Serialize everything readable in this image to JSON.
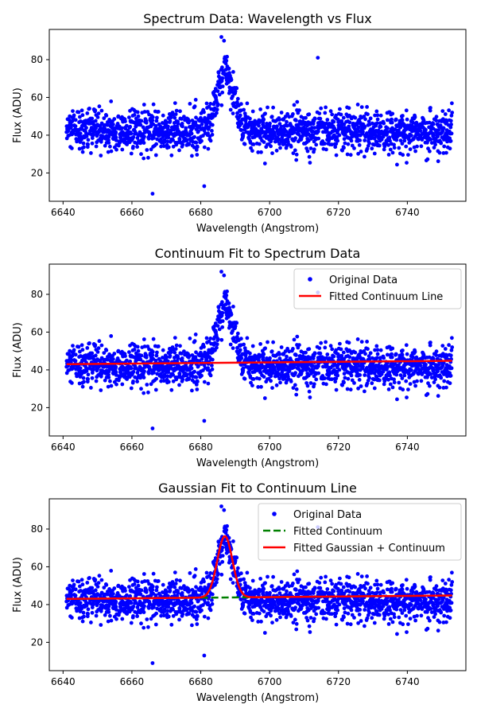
{
  "chart_data": [
    {
      "type": "scatter",
      "title": "Spectrum Data: Wavelength vs Flux",
      "xlabel": "Wavelength (Angstrom)",
      "ylabel": "Flux (ADU)",
      "xlim": [
        6636,
        6757
      ],
      "ylim": [
        5,
        96
      ],
      "xticks": [
        6640,
        6660,
        6680,
        6700,
        6720,
        6740
      ],
      "yticks": [
        20,
        40,
        60,
        80
      ],
      "legend_position": "",
      "series": [
        {
          "kind": "points",
          "color": "#0000ff",
          "x_range": [
            6641,
            6753
          ],
          "baseline": 42,
          "noise_sd": 5.5,
          "line_center": 6687,
          "line_amplitude": 32,
          "line_sigma": 2.4,
          "count": 1800,
          "outliers": [
            [
              6686,
              92
            ],
            [
              6714,
              81
            ],
            [
              6666,
              9
            ],
            [
              6681,
              13
            ]
          ]
        }
      ]
    },
    {
      "type": "scatter",
      "title": "Continuum Fit to Spectrum Data",
      "xlabel": "Wavelength (Angstrom)",
      "ylabel": "Flux (ADU)",
      "xlim": [
        6636,
        6757
      ],
      "ylim": [
        5,
        96
      ],
      "xticks": [
        6640,
        6660,
        6680,
        6700,
        6720,
        6740
      ],
      "yticks": [
        20,
        40,
        60,
        80
      ],
      "legend_position": "top-right",
      "series": [
        {
          "name": "Original Data",
          "kind": "points",
          "color": "#0000ff",
          "x_range": [
            6641,
            6753
          ],
          "baseline": 42,
          "noise_sd": 5.5,
          "line_center": 6687,
          "line_amplitude": 32,
          "line_sigma": 2.4,
          "count": 1800,
          "outliers": [
            [
              6686,
              92
            ],
            [
              6714,
              81
            ],
            [
              6666,
              9
            ],
            [
              6681,
              13
            ]
          ]
        },
        {
          "name": "Fitted Continuum Line",
          "kind": "line",
          "color": "#ff0000",
          "dash": false,
          "x": [
            6641,
            6753
          ],
          "y": [
            43.0,
            44.8
          ]
        }
      ]
    },
    {
      "type": "scatter",
      "title": "Gaussian Fit to Continuum Line",
      "xlabel": "Wavelength (Angstrom)",
      "ylabel": "Flux (ADU)",
      "xlim": [
        6636,
        6757
      ],
      "ylim": [
        5,
        96
      ],
      "xticks": [
        6640,
        6660,
        6680,
        6700,
        6720,
        6740
      ],
      "yticks": [
        20,
        40,
        60,
        80
      ],
      "legend_position": "top-right",
      "series": [
        {
          "name": "Original Data",
          "kind": "points",
          "color": "#0000ff",
          "x_range": [
            6641,
            6753
          ],
          "baseline": 42,
          "noise_sd": 5.5,
          "line_center": 6687,
          "line_amplitude": 32,
          "line_sigma": 2.4,
          "count": 1800,
          "outliers": [
            [
              6686,
              92
            ],
            [
              6714,
              81
            ],
            [
              6666,
              9
            ],
            [
              6681,
              13
            ]
          ]
        },
        {
          "name": "Fitted Continuum",
          "kind": "line",
          "color": "#008000",
          "dash": true,
          "x": [
            6641,
            6753
          ],
          "y": [
            43.0,
            44.8
          ]
        },
        {
          "name": "Fitted Gaussian + Continuum",
          "kind": "gaussian",
          "color": "#ff0000",
          "dash": false,
          "x_range": [
            6641,
            6753
          ],
          "continuum": [
            43.0,
            44.8
          ],
          "center": 6687,
          "amplitude": 32.5,
          "sigma": 2.2
        }
      ]
    }
  ]
}
